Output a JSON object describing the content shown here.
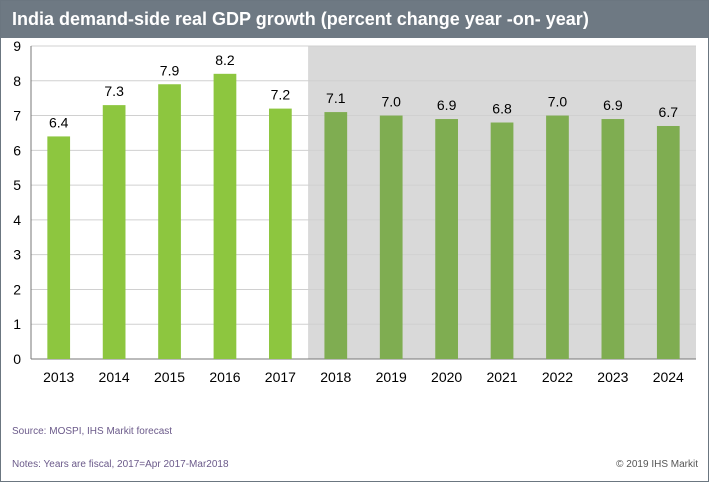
{
  "chart_data": {
    "type": "bar",
    "title": "India demand-side real GDP growth (percent change year -on- year)",
    "categories": [
      "2013",
      "2014",
      "2015",
      "2016",
      "2017",
      "2018",
      "2019",
      "2020",
      "2021",
      "2022",
      "2023",
      "2024"
    ],
    "values": [
      6.4,
      7.3,
      7.9,
      8.2,
      7.2,
      7.1,
      7.0,
      6.9,
      6.8,
      7.0,
      6.9,
      6.7
    ],
    "value_labels": [
      "6.4",
      "7.3",
      "7.9",
      "8.2",
      "7.2",
      "7.1",
      "7.0",
      "6.9",
      "6.8",
      "7.0",
      "6.9",
      "6.7"
    ],
    "forecast_start_category": "2018",
    "ylim": [
      0,
      9
    ],
    "yticks": [
      0,
      1,
      2,
      3,
      4,
      5,
      6,
      7,
      8,
      9
    ],
    "grid": true,
    "colors": {
      "actual_bar": "#8dc63f",
      "forecast_bar": "#7fad51",
      "forecast_shading": "#d9d9d9",
      "gridline": "#d0d0d0",
      "title_bar": "#6e7983"
    }
  },
  "footer": {
    "source": "Source: MOSPI, IHS Markit forecast",
    "notes": "Notes: Years are fiscal, 2017=Apr 2017-Mar2018",
    "copyright": "© 2019 IHS Markit"
  }
}
